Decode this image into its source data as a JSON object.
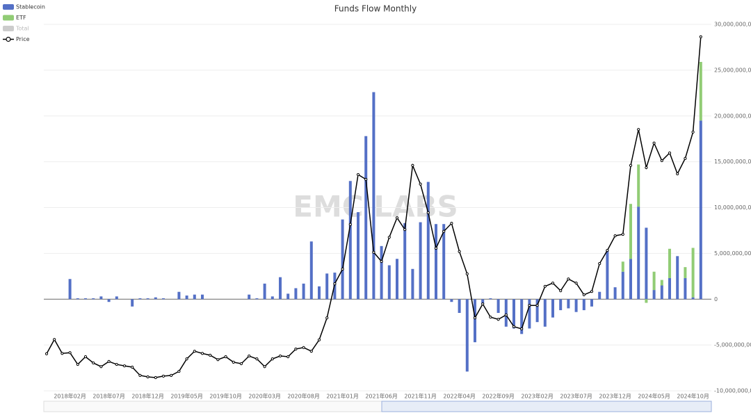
{
  "chart_data": {
    "type": "bar",
    "title": "Funds Flow Monthly",
    "watermark": "EMC LABS",
    "categories": [
      null,
      null,
      null,
      "2018年02月",
      null,
      null,
      null,
      null,
      "2018年07月",
      null,
      null,
      null,
      null,
      "2018年12月",
      null,
      null,
      null,
      null,
      "2019年05月",
      null,
      null,
      null,
      null,
      "2019年10月",
      null,
      null,
      null,
      null,
      "2020年03月",
      null,
      null,
      null,
      null,
      "2020年08月",
      null,
      null,
      null,
      null,
      "2021年01月",
      null,
      null,
      null,
      null,
      "2021年06月",
      null,
      null,
      null,
      null,
      "2021年11月",
      null,
      null,
      null,
      null,
      "2022年04月",
      null,
      null,
      null,
      null,
      "2022年09月",
      null,
      null,
      null,
      null,
      "2023年02月",
      null,
      null,
      null,
      null,
      "2023年07月",
      null,
      null,
      null,
      null,
      "2023年12月",
      null,
      null,
      null,
      null,
      "2024年05月",
      null,
      null,
      null,
      null,
      "2024年10月",
      null
    ],
    "series": [
      {
        "name": "Stablecoin",
        "color": "#5470c6",
        "stack": true,
        "values": [
          0,
          0,
          0,
          2200000000.0,
          100000000.0,
          100000000.0,
          100000000.0,
          300000000.0,
          -300000000.0,
          300000000.0,
          0,
          -800000000.0,
          100000000.0,
          100000000.0,
          200000000.0,
          100000000.0,
          0,
          800000000.0,
          400000000.0,
          500000000.0,
          500000000.0,
          0,
          0,
          0,
          0,
          0,
          500000000.0,
          100000000.0,
          1700000000.0,
          300000000.0,
          2400000000.0,
          600000000.0,
          1200000000.0,
          1700000000.0,
          6300000000.0,
          1400000000.0,
          2800000000.0,
          2900000000.0,
          8700000000.0,
          12900000000.0,
          9500000000.0,
          17800000000.0,
          22600000000.0,
          5800000000.0,
          3700000000.0,
          4400000000.0,
          8300000000.0,
          3300000000.0,
          8400000000.0,
          12800000000.0,
          8200000000.0,
          8200000000.0,
          -300000000.0,
          -1500000000.0,
          -7900000000.0,
          -4700000000.0,
          -500000000.0,
          100000000.0,
          -1500000000.0,
          -3000000000.0,
          -3200000000.0,
          -3800000000.0,
          -3200000000.0,
          -2500000000.0,
          -3000000000.0,
          -2000000000.0,
          -1200000000.0,
          -1000000000.0,
          -1400000000.0,
          -1200000000.0,
          -800000000.0,
          800000000.0,
          5400000000.0,
          1300000000.0,
          3000000000.0,
          4400000000.0,
          10100000000.0,
          7800000000.0,
          1000000000.0,
          1500000000.0,
          2300000000.0,
          4700000000.0,
          2300000000.0,
          200000000.0,
          19500000000.0
        ]
      },
      {
        "name": "ETF",
        "color": "#91cc75",
        "stack": true,
        "values": [
          null,
          null,
          null,
          null,
          null,
          null,
          null,
          null,
          null,
          null,
          null,
          null,
          null,
          null,
          null,
          null,
          null,
          null,
          null,
          null,
          null,
          null,
          null,
          null,
          null,
          null,
          null,
          null,
          null,
          null,
          null,
          null,
          null,
          null,
          null,
          null,
          null,
          null,
          null,
          null,
          null,
          null,
          null,
          null,
          null,
          null,
          null,
          null,
          null,
          null,
          null,
          null,
          null,
          null,
          null,
          null,
          null,
          null,
          null,
          null,
          null,
          null,
          null,
          null,
          null,
          null,
          null,
          null,
          null,
          null,
          null,
          null,
          null,
          null,
          1100000000.0,
          6000000000.0,
          4600000000.0,
          -400000000.0,
          2000000000.0,
          600000000.0,
          3200000000.0,
          0,
          1200000000.0,
          5400000000.0,
          6400000000.0
        ]
      },
      {
        "name": "Total",
        "color": "#cccccc",
        "visible": false
      },
      {
        "name": "Price",
        "color": "#000000",
        "type": "line",
        "axis": "y2",
        "values": [
          10100,
          14000,
          10200,
          10400,
          7200,
          9300,
          7600,
          6600,
          8000,
          7200,
          6800,
          6450,
          4200,
          3800,
          3600,
          4000,
          4200,
          5300,
          8700,
          10800,
          10200,
          9700,
          8500,
          9300,
          7800,
          7400,
          9500,
          8700,
          6600,
          8700,
          9500,
          9300,
          11400,
          11800,
          10800,
          13900,
          19900,
          29200,
          33200,
          45400,
          59000,
          57700,
          37800,
          35300,
          41900,
          47200,
          44000,
          61500,
          56400,
          48600,
          38900,
          43500,
          45700,
          38000,
          31900,
          19900,
          23700,
          20100,
          19500,
          20700,
          17500,
          16900,
          23300,
          23300,
          28500,
          29400,
          27300,
          30500,
          29400,
          26200,
          27100,
          34700,
          38300,
          42300,
          42700,
          61500,
          71300,
          60900,
          67600,
          62800,
          64900,
          59200,
          63400,
          70600,
          96600
        ]
      }
    ],
    "ylim": [
      -10000000000,
      30000000000
    ],
    "yticks": [
      {
        "value": -10000000000,
        "label": "-10,000,000,000"
      },
      {
        "value": -5000000000,
        "label": "-5,000,000,000"
      },
      0,
      {
        "value": 5000000000,
        "label": "5,000,000,000"
      },
      {
        "value": 10000000000,
        "label": "10,000,000,000"
      },
      {
        "value": 15000000000,
        "label": "15,000,000,000"
      },
      {
        "value": 20000000000,
        "label": "20,000,000,000"
      },
      {
        "value": 25000000000,
        "label": "25,000,000,000"
      },
      {
        "value": 30000000000,
        "label": "30,000,000,000"
      }
    ],
    "y2lim": [
      0,
      100000
    ],
    "grid": true,
    "legend": "top-left"
  }
}
